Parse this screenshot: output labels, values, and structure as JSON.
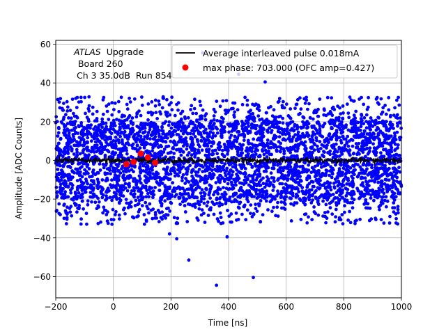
{
  "chart_data": {
    "type": "scatter",
    "xlabel": "Time [ns]",
    "ylabel": "Amplitude [ADC Counts]",
    "xlim": [
      -200,
      1000
    ],
    "ylim": [
      -71,
      62
    ],
    "x_ticks": [
      -200,
      0,
      200,
      400,
      600,
      800,
      1000
    ],
    "y_ticks": [
      -60,
      -40,
      -20,
      0,
      20,
      40,
      60
    ],
    "x_tick_labels": [
      "−200",
      "0",
      "200",
      "400",
      "600",
      "800",
      "1000"
    ],
    "y_tick_labels": [
      "−60",
      "−40",
      "−20",
      "0",
      "20",
      "40",
      "60"
    ],
    "grid": true,
    "legend_position": "upper-right",
    "annotation": {
      "atlas": "ATLAS",
      "upgrade": "Upgrade",
      "line2": "Board 260",
      "line3": "Ch 3 35.0dB  Run 854"
    },
    "samples": {
      "color": "#0000ff",
      "x_range": [
        -200,
        1000
      ],
      "core_y_range": [
        -19,
        19
      ],
      "outer_y_range": [
        -33,
        33
      ],
      "outliers": [
        {
          "x": 195,
          "y": -38
        },
        {
          "x": 220,
          "y": -40.5
        },
        {
          "x": 262,
          "y": -51.5
        },
        {
          "x": 358,
          "y": -64.5
        },
        {
          "x": 395,
          "y": -39.5
        },
        {
          "x": 486,
          "y": -60.5
        },
        {
          "x": 435,
          "y": 44.5
        },
        {
          "x": 527,
          "y": 40.5
        },
        {
          "x": 310,
          "y": 55.5
        }
      ]
    },
    "series": [
      {
        "name": "Average interleaved pulse 0.018mA",
        "type": "line",
        "color": "#000000",
        "x_range": [
          -200,
          1000
        ],
        "y_center": 0,
        "y_noise": 1.4
      },
      {
        "name": "max phase: 703.000 (OFC amp=0.427)",
        "type": "scatter",
        "color": "#ff0000",
        "points": [
          {
            "x": 45,
            "y": -2
          },
          {
            "x": 70,
            "y": -0.8
          },
          {
            "x": 95,
            "y": 3.5
          },
          {
            "x": 120,
            "y": 1.5
          },
          {
            "x": 145,
            "y": -1.2
          }
        ]
      }
    ]
  }
}
